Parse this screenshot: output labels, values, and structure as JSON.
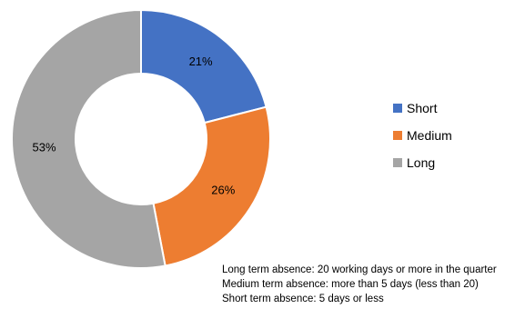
{
  "chart_data": {
    "type": "pie",
    "variant": "donut",
    "categories": [
      "Short",
      "Medium",
      "Long"
    ],
    "values": [
      21,
      26,
      53
    ],
    "data_labels": [
      "21%",
      "26%",
      "53%"
    ],
    "colors": [
      "#4472c4",
      "#ed7d31",
      "#a5a5a5"
    ],
    "legend_position": "right",
    "title": ""
  },
  "legend": {
    "items": [
      {
        "label": "Short",
        "color": "#4472c4"
      },
      {
        "label": "Medium",
        "color": "#ed7d31"
      },
      {
        "label": "Long",
        "color": "#a5a5a5"
      }
    ]
  },
  "notes": {
    "line1": "Long term absence: 20 working days or more in the quarter",
    "line2": "Medium term absence: more than 5 days (less than 20)",
    "line3": "Short term absence: 5 days or less"
  }
}
